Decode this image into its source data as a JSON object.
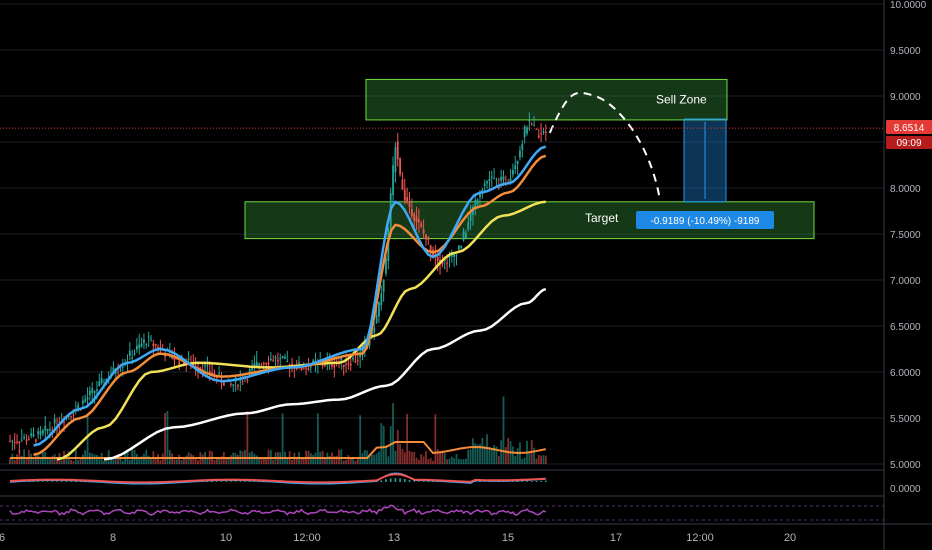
{
  "chart_data": {
    "type": "candlestick",
    "y_axis": {
      "ticks": [
        "10.0000",
        "9.5000",
        "9.0000",
        "8.5000",
        "8.0000",
        "7.5000",
        "7.0000",
        "6.5000",
        "6.0000",
        "5.5000",
        "5.0000"
      ],
      "range": [
        5.0,
        10.0
      ]
    },
    "x_axis": {
      "ticks": [
        "6",
        "8",
        "10",
        "12:00",
        "13",
        "15",
        "17",
        "12:00",
        "20"
      ]
    },
    "last_price": "8.6514",
    "countdown": "09:09",
    "oscillator_tick": "0.0000",
    "price_path": [
      [
        0,
        5.25
      ],
      [
        6,
        5.3
      ],
      [
        10,
        5.45
      ],
      [
        14,
        5.6
      ],
      [
        18,
        5.8
      ],
      [
        22,
        6.0
      ],
      [
        26,
        6.2
      ],
      [
        29,
        6.35
      ],
      [
        32,
        6.25
      ],
      [
        35,
        6.15
      ],
      [
        38,
        6.1
      ],
      [
        41,
        6.05
      ],
      [
        44,
        5.95
      ],
      [
        47,
        5.85
      ],
      [
        50,
        5.95
      ],
      [
        53,
        6.1
      ],
      [
        56,
        6.15
      ],
      [
        59,
        6.1
      ],
      [
        62,
        6.05
      ],
      [
        65,
        6.08
      ],
      [
        68,
        6.1
      ],
      [
        71,
        6.1
      ],
      [
        74,
        6.15
      ],
      [
        76,
        6.3
      ],
      [
        78,
        6.6
      ],
      [
        80,
        7.2
      ],
      [
        81,
        7.9
      ],
      [
        82,
        8.5
      ],
      [
        83,
        8.1
      ],
      [
        84,
        7.9
      ],
      [
        86,
        7.7
      ],
      [
        88,
        7.5
      ],
      [
        90,
        7.3
      ],
      [
        92,
        7.2
      ],
      [
        94,
        7.25
      ],
      [
        96,
        7.4
      ],
      [
        98,
        7.7
      ],
      [
        100,
        8.0
      ],
      [
        102,
        8.1
      ],
      [
        104,
        8.05
      ],
      [
        106,
        8.1
      ],
      [
        108,
        8.35
      ],
      [
        110,
        8.7
      ],
      [
        112,
        8.6
      ],
      [
        114,
        8.65
      ]
    ],
    "moving_averages": [
      {
        "color": "#f2e157",
        "values": [
          [
            10,
            5.05
          ],
          [
            20,
            5.4
          ],
          [
            30,
            6.0
          ],
          [
            40,
            6.1
          ],
          [
            55,
            6.05
          ],
          [
            70,
            6.1
          ],
          [
            78,
            6.4
          ],
          [
            85,
            6.9
          ],
          [
            95,
            7.3
          ],
          [
            105,
            7.7
          ],
          [
            114,
            7.85
          ]
        ]
      },
      {
        "color": "#ffffff",
        "values": [
          [
            20,
            5.05
          ],
          [
            35,
            5.4
          ],
          [
            50,
            5.55
          ],
          [
            60,
            5.65
          ],
          [
            70,
            5.7
          ],
          [
            80,
            5.85
          ],
          [
            90,
            6.25
          ],
          [
            100,
            6.45
          ],
          [
            110,
            6.75
          ],
          [
            114,
            6.9
          ]
        ]
      },
      {
        "color": "#f28c38",
        "values": [
          [
            5,
            5.1
          ],
          [
            15,
            5.5
          ],
          [
            25,
            6.0
          ],
          [
            32,
            6.2
          ],
          [
            45,
            5.95
          ],
          [
            60,
            6.05
          ],
          [
            75,
            6.2
          ],
          [
            82,
            7.6
          ],
          [
            90,
            7.3
          ],
          [
            100,
            7.8
          ],
          [
            106,
            7.95
          ],
          [
            114,
            8.35
          ]
        ]
      },
      {
        "color": "#3fa9f5",
        "values": [
          [
            5,
            5.2
          ],
          [
            15,
            5.6
          ],
          [
            25,
            6.1
          ],
          [
            32,
            6.25
          ],
          [
            45,
            5.9
          ],
          [
            60,
            6.05
          ],
          [
            75,
            6.25
          ],
          [
            82,
            7.85
          ],
          [
            90,
            7.25
          ],
          [
            100,
            7.95
          ],
          [
            106,
            8.05
          ],
          [
            114,
            8.45
          ]
        ]
      }
    ],
    "annotations": {
      "sell_zone": {
        "label": "Sell Zone",
        "y_range": [
          8.74,
          9.18
        ]
      },
      "target_zone": {
        "label": "Target",
        "y_range": [
          7.45,
          7.85
        ]
      },
      "projection": {
        "from": [
          114,
          8.6
        ],
        "peak": [
          120,
          9.0
        ],
        "to": [
          133,
          7.8
        ]
      },
      "measure_label": "-0.9189 (-10.49%) -9189"
    }
  }
}
